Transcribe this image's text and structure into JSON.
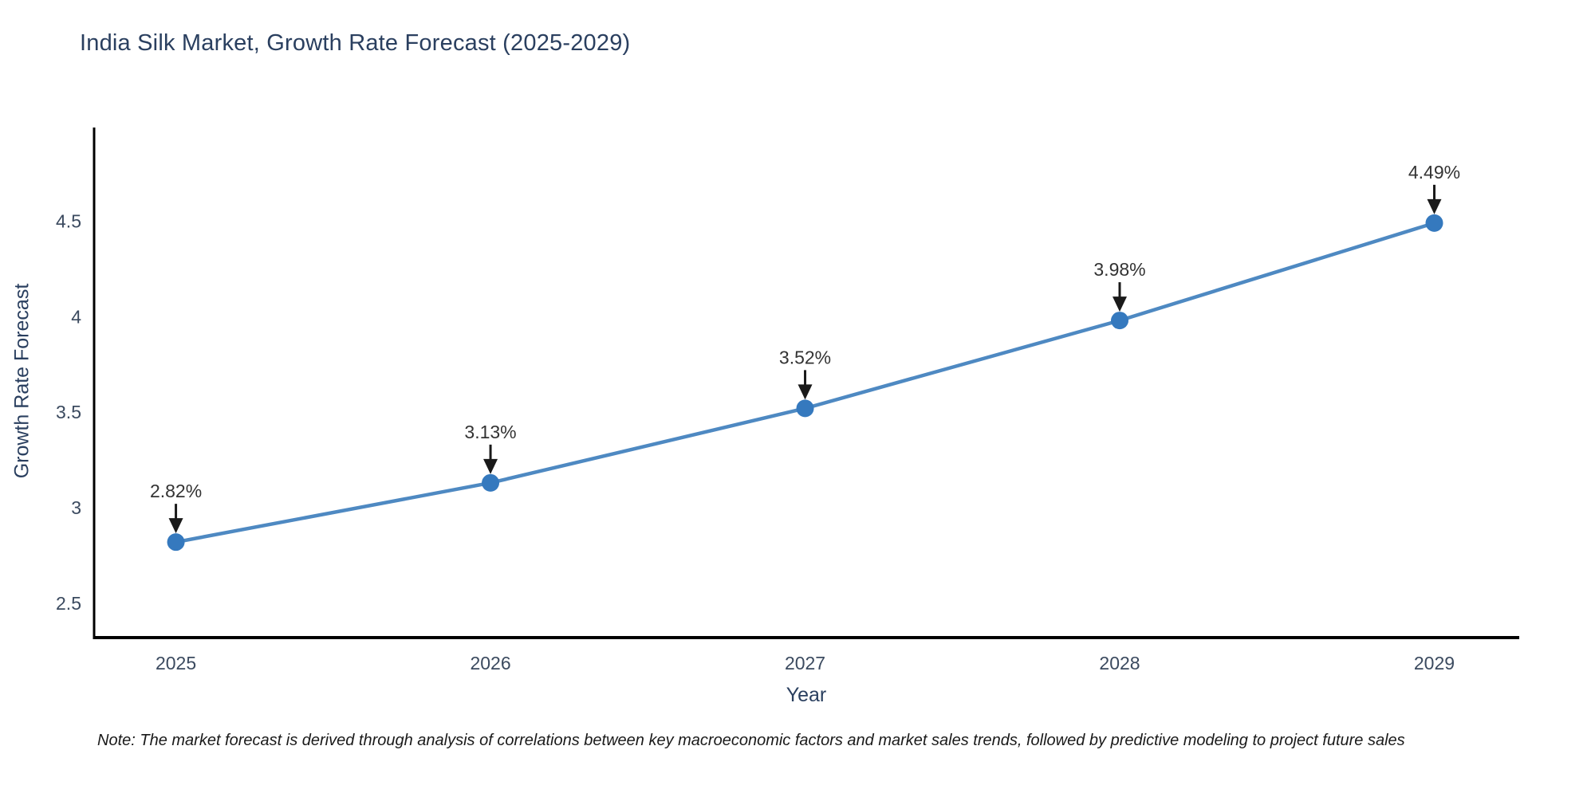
{
  "title": "India Silk Market, Growth Rate Forecast (2025-2029)",
  "note": {
    "text": "Note: The market forecast is derived through analysis of correlations between key macroeconomic factors and market sales trends, followed by predictive modeling to project future sales"
  },
  "chart_data": {
    "type": "line",
    "title": "India Silk Market, Growth Rate Forecast (2025-2029)",
    "xlabel": "Year",
    "ylabel": "Growth Rate Forecast",
    "x": [
      2025,
      2026,
      2027,
      2028,
      2029
    ],
    "series": [
      {
        "name": "Growth Rate Forecast",
        "values": [
          2.82,
          3.13,
          3.52,
          3.98,
          4.49
        ]
      }
    ],
    "point_labels": [
      "2.82%",
      "3.13%",
      "3.52%",
      "3.98%",
      "4.49%"
    ],
    "y_ticks": [
      2.5,
      3,
      3.5,
      4,
      4.5
    ],
    "ylim": [
      2.32,
      4.99
    ],
    "xlim": [
      2024.74,
      2029.27
    ],
    "grid": false,
    "legend_position": "none",
    "annotations": "black down-arrows from labels to markers",
    "colors": {
      "line": "#4e89c2",
      "marker": "#3579be",
      "axis": "#000000",
      "text": "#2a3f5f",
      "annotation": "#1a1a1a"
    }
  }
}
